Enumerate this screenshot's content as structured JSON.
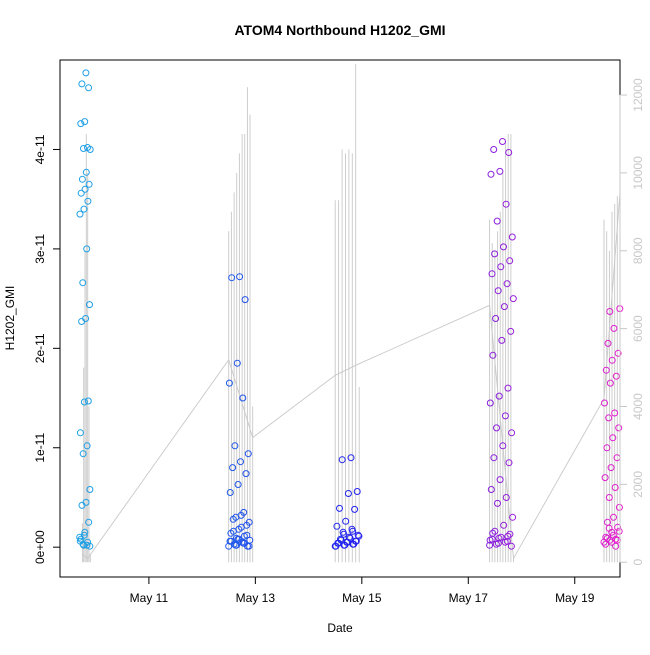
{
  "chart_data": {
    "type": "scatter",
    "title": "ATOM4 Northbound H1202_GMI",
    "xlabel": "Date",
    "ylabel": "H1202_GMI",
    "x_ticks": [
      "May 11",
      "May 13",
      "May 15",
      "May 17",
      "May 19"
    ],
    "x_range_days": [
      9.33,
      19.85
    ],
    "ylim": [
      -3e-12,
      4.9e-11
    ],
    "y_ticks": [
      "0e+00",
      "1e-11",
      "2e-11",
      "3e-11",
      "4e-11"
    ],
    "y_tick_values": [
      0,
      1e-11,
      2e-11,
      3e-11,
      4e-11
    ],
    "ylim_right": [
      -380,
      12900
    ],
    "y_ticks_right": [
      "0",
      "2000",
      "4000",
      "6000",
      "8000",
      "10000",
      "12000"
    ],
    "y_tick_values_right": [
      0,
      2000,
      4000,
      6000,
      8000,
      10000,
      12000
    ],
    "grid": false,
    "legend": "none",
    "colors": {
      "points_start": "#1fa2e6",
      "points_mid": "#2020f0",
      "points_end": "#e61fcc",
      "secondary_line": "#c8c8c8"
    },
    "series": [
      {
        "kind": "points",
        "bursts": [
          {
            "start": 9.7,
            "end": 9.9,
            "values": [
              1e-12,
              2e-13,
              5e-13,
              8e-13,
              1.5e-12,
              2.5e-12,
              4.2e-12,
              4.5e-12,
              5.8e-12,
              9.4e-12,
              1.02e-11,
              1.15e-11,
              1.46e-11,
              1.47e-11,
              2.27e-11,
              2.3e-11,
              2.44e-11,
              2.66e-11,
              3e-11,
              3.35e-11,
              3.4e-11,
              3.48e-11,
              3.56e-11,
              3.6e-11,
              3.65e-11,
              3.7e-11,
              3.77e-11,
              4e-11,
              4.01e-11,
              4.02e-11,
              4.26e-11,
              4.28e-11,
              4.62e-11,
              4.66e-11,
              4.77e-11,
              1e-13,
              3e-13,
              2e-13,
              6e-13,
              1.2e-12
            ]
          },
          {
            "start": 12.5,
            "end": 12.9,
            "values": [
              1e-13,
              2e-13,
              4e-13,
              6e-13,
              8e-13,
              1.2e-12,
              1.6e-12,
              2e-12,
              2.5e-12,
              3e-12,
              3.5e-12,
              5.5e-12,
              6.3e-12,
              7.4e-12,
              8e-12,
              8.6e-12,
              9.4e-12,
              1.02e-11,
              1.5e-11,
              1.65e-11,
              1.85e-11,
              2.49e-11,
              2.71e-11,
              2.72e-11,
              1e-13,
              3e-13,
              5e-13,
              7e-13,
              9e-13,
              1.1e-12,
              1.4e-12,
              1.8e-12,
              2.2e-12,
              2.8e-12,
              3.2e-12,
              1e-13,
              2e-13,
              4e-13,
              6e-13,
              8e-13
            ]
          },
          {
            "start": 14.5,
            "end": 14.95,
            "values": [
              1e-13,
              2e-13,
              3e-13,
              4e-13,
              5e-13,
              6e-13,
              8e-13,
              1e-12,
              1.2e-12,
              1.5e-12,
              1.8e-12,
              2.1e-12,
              2.6e-12,
              3.8e-12,
              3.9e-12,
              5.4e-12,
              5.6e-12,
              8.8e-12,
              9e-12,
              1e-13,
              2e-13,
              3e-13,
              4e-13,
              5e-13,
              6e-13,
              7e-13,
              9e-13,
              1.1e-12,
              1.3e-12,
              1.6e-12
            ]
          },
          {
            "start": 17.4,
            "end": 17.85,
            "values": [
              2e-13,
              4e-13,
              6e-13,
              8e-13,
              1e-12,
              1.3e-12,
              1.6e-12,
              2.2e-12,
              3e-12,
              4.4e-12,
              5e-12,
              5.8e-12,
              6.8e-12,
              8.5e-12,
              9e-12,
              1.02e-11,
              1.15e-11,
              1.2e-11,
              1.32e-11,
              1.45e-11,
              1.52e-11,
              1.6e-11,
              1.93e-11,
              2.08e-11,
              2.17e-11,
              2.3e-11,
              2.42e-11,
              2.5e-11,
              2.58e-11,
              2.65e-11,
              2.75e-11,
              2.82e-11,
              2.88e-11,
              2.95e-11,
              3.02e-11,
              3.12e-11,
              3.28e-11,
              3.45e-11,
              3.75e-11,
              3.78e-11,
              3.97e-11,
              4e-11,
              4.08e-11,
              1e-13,
              3e-13,
              5e-13,
              7e-13,
              9e-13,
              1.1e-12,
              1.4e-12
            ]
          },
          {
            "start": 19.55,
            "end": 19.85,
            "values": [
              5e-13,
              7e-13,
              8e-13,
              1e-12,
              1.5e-12,
              2e-12,
              2.5e-12,
              3e-12,
              4e-12,
              5e-12,
              6e-12,
              7e-12,
              8e-12,
              9e-12,
              1e-11,
              1.1e-11,
              1.2e-11,
              1.3e-11,
              1.35e-11,
              1.45e-11,
              1.65e-11,
              1.72e-11,
              1.78e-11,
              1.88e-11,
              1.95e-11,
              2.05e-11,
              2.2e-11,
              2.4e-11,
              2.37e-11,
              1e-13,
              3e-13,
              5e-13,
              7e-13,
              9e-13,
              1.2e-12,
              1.6e-12,
              1.9e-12
            ]
          }
        ]
      },
      {
        "kind": "line",
        "axis": "right",
        "path": [
          [
            9.75,
            200
          ],
          [
            9.85,
            100
          ],
          [
            12.5,
            5200
          ],
          [
            12.95,
            3200
          ],
          [
            14.5,
            4800
          ],
          [
            14.95,
            5100
          ],
          [
            17.4,
            6600
          ],
          [
            17.85,
            100
          ],
          [
            19.55,
            4200
          ],
          [
            19.85,
            9500
          ]
        ],
        "spikes": [
          {
            "start": 9.75,
            "end": 9.9,
            "peaks": [
              1000,
              5000,
              8000,
              11000,
              10000,
              4000,
              200
            ]
          },
          {
            "start": 12.5,
            "end": 12.95,
            "peaks": [
              8500,
              9000,
              9500,
              10000,
              10500,
              11000,
              11000,
              12200,
              11500,
              4000
            ]
          },
          {
            "start": 14.5,
            "end": 14.95,
            "peaks": [
              9300,
              9300,
              10600,
              10500,
              10600,
              10500,
              12800,
              4500
            ]
          },
          {
            "start": 17.4,
            "end": 17.85,
            "peaks": [
              8800,
              8200,
              8000,
              8500,
              9000,
              10000,
              10800,
              11000,
              11000,
              100
            ]
          },
          {
            "start": 19.55,
            "end": 19.85,
            "peaks": [
              8800,
              8500,
              8000,
              9000,
              9200,
              9400,
              9500
            ]
          }
        ]
      }
    ]
  }
}
